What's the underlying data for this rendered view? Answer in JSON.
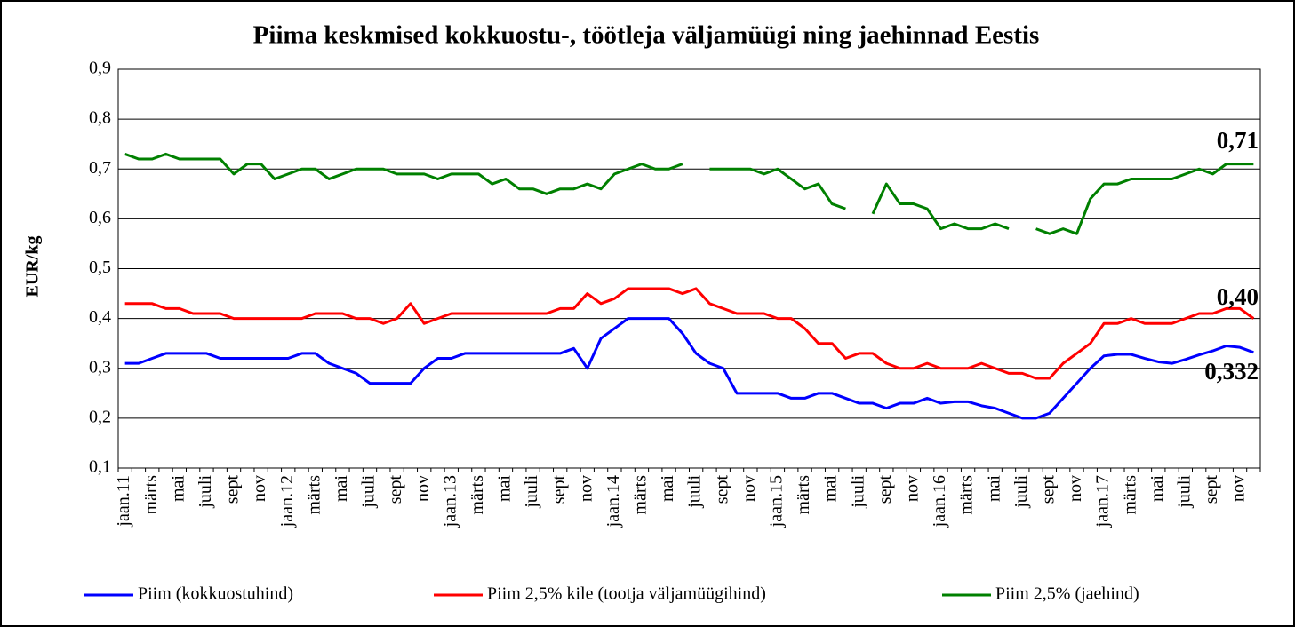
{
  "chart_data": {
    "type": "line",
    "title": "Piima keskmised kokkuostu-, töötleja väljamüügi ning jaehinnad Eestis",
    "y_label": "EUR/kg",
    "categories": [
      "jaan.11",
      null,
      "märts",
      null,
      "mai",
      null,
      "juuli",
      null,
      "sept",
      null,
      "nov",
      null,
      "jaan.12",
      null,
      "märts",
      null,
      "mai",
      null,
      "juuli",
      null,
      "sept",
      null,
      "nov",
      null,
      "jaan.13",
      null,
      "märts",
      null,
      "mai",
      null,
      "juuli",
      null,
      "sept",
      null,
      "nov",
      null,
      "jaan.14",
      null,
      "märts",
      null,
      "mai",
      null,
      "juuli",
      null,
      "sept",
      null,
      "nov",
      null,
      "jaan.15",
      null,
      "märts",
      null,
      "mai",
      null,
      "juuli",
      null,
      "sept",
      null,
      "nov",
      null,
      "jaan.16",
      null,
      "märts",
      null,
      "mai",
      null,
      "juuli",
      null,
      "sept",
      null,
      "nov",
      null,
      "jaan.17",
      null,
      "märts",
      null,
      "mai",
      null,
      "juuli",
      null,
      "sept",
      null,
      "nov",
      null
    ],
    "series": [
      {
        "name": "Piim (kokkuostuhind)",
        "color": "#0000ff",
        "values": [
          0.31,
          0.31,
          0.32,
          0.33,
          0.33,
          0.33,
          0.33,
          0.32,
          0.32,
          0.32,
          0.32,
          0.32,
          0.32,
          0.33,
          0.33,
          0.31,
          0.3,
          0.29,
          0.27,
          0.27,
          0.27,
          0.27,
          0.3,
          0.32,
          0.32,
          0.33,
          0.33,
          0.33,
          0.33,
          0.33,
          0.33,
          0.33,
          0.33,
          0.34,
          0.3,
          0.36,
          0.38,
          0.4,
          0.4,
          0.4,
          0.4,
          0.37,
          0.33,
          0.31,
          0.3,
          0.25,
          0.25,
          0.25,
          0.25,
          0.24,
          0.24,
          0.25,
          0.25,
          0.24,
          0.23,
          0.23,
          0.22,
          0.23,
          0.23,
          0.24,
          0.23,
          0.233,
          0.233,
          0.225,
          0.22,
          0.21,
          0.2,
          0.2,
          0.21,
          0.24,
          0.27,
          0.3,
          0.325,
          0.328,
          0.328,
          0.32,
          0.313,
          0.31,
          0.318,
          0.327,
          0.335,
          0.345,
          0.342,
          0.332
        ]
      },
      {
        "name": "Piim 2,5% kile (tootja väljamüügihind)",
        "color": "#ff0000",
        "values": [
          0.43,
          0.43,
          0.43,
          0.42,
          0.42,
          0.41,
          0.41,
          0.41,
          0.4,
          0.4,
          0.4,
          0.4,
          0.4,
          0.4,
          0.41,
          0.41,
          0.41,
          0.4,
          0.4,
          0.39,
          0.4,
          0.43,
          0.39,
          0.4,
          0.41,
          0.41,
          0.41,
          0.41,
          0.41,
          0.41,
          0.41,
          0.41,
          0.42,
          0.42,
          0.45,
          0.43,
          0.44,
          0.46,
          0.46,
          0.46,
          0.46,
          0.45,
          0.46,
          0.43,
          0.42,
          0.41,
          0.41,
          0.41,
          0.4,
          0.4,
          0.38,
          0.35,
          0.35,
          0.32,
          0.33,
          0.33,
          0.31,
          0.3,
          0.3,
          0.31,
          0.3,
          0.3,
          0.3,
          0.31,
          0.3,
          0.29,
          0.29,
          0.28,
          0.28,
          0.31,
          0.33,
          0.35,
          0.39,
          0.39,
          0.4,
          0.39,
          0.39,
          0.39,
          0.4,
          0.41,
          0.41,
          0.42,
          0.42,
          0.4
        ]
      },
      {
        "name": "Piim 2,5% (jaehind)",
        "color": "#008000",
        "values": [
          0.73,
          0.72,
          0.72,
          0.73,
          0.72,
          0.72,
          0.72,
          0.72,
          0.69,
          0.71,
          0.71,
          0.68,
          0.69,
          0.7,
          0.7,
          0.68,
          0.69,
          0.7,
          0.7,
          0.7,
          0.69,
          0.69,
          0.69,
          0.68,
          0.69,
          0.69,
          0.69,
          0.67,
          0.68,
          0.66,
          0.66,
          0.65,
          0.66,
          0.66,
          0.67,
          0.66,
          0.69,
          0.7,
          0.71,
          0.7,
          0.7,
          0.71,
          null,
          0.7,
          0.7,
          0.7,
          0.7,
          0.69,
          0.7,
          0.68,
          0.66,
          0.67,
          0.63,
          0.62,
          null,
          0.61,
          0.67,
          0.63,
          0.63,
          0.62,
          0.58,
          0.59,
          0.58,
          0.58,
          0.59,
          0.58,
          null,
          0.58,
          0.57,
          0.58,
          0.57,
          0.64,
          0.67,
          0.67,
          0.68,
          0.68,
          0.68,
          0.68,
          0.69,
          0.7,
          0.69,
          0.71,
          0.71,
          0.71
        ]
      }
    ],
    "annotations": [
      "0,332",
      "0,40",
      "0,71"
    ],
    "ylim": [
      0.1,
      0.9
    ],
    "yticks": [
      {
        "value": 0.1,
        "label": "0,1"
      },
      {
        "value": 0.2,
        "label": "0,2"
      },
      {
        "value": 0.3,
        "label": "0,3"
      },
      {
        "value": 0.4,
        "label": "0,4"
      },
      {
        "value": 0.5,
        "label": "0,5"
      },
      {
        "value": 0.6,
        "label": "0,6"
      },
      {
        "value": 0.7,
        "label": "0,7"
      },
      {
        "value": 0.8,
        "label": "0,8"
      },
      {
        "value": 0.9,
        "label": "0,9"
      }
    ],
    "grid": true,
    "legend": "bottom"
  }
}
